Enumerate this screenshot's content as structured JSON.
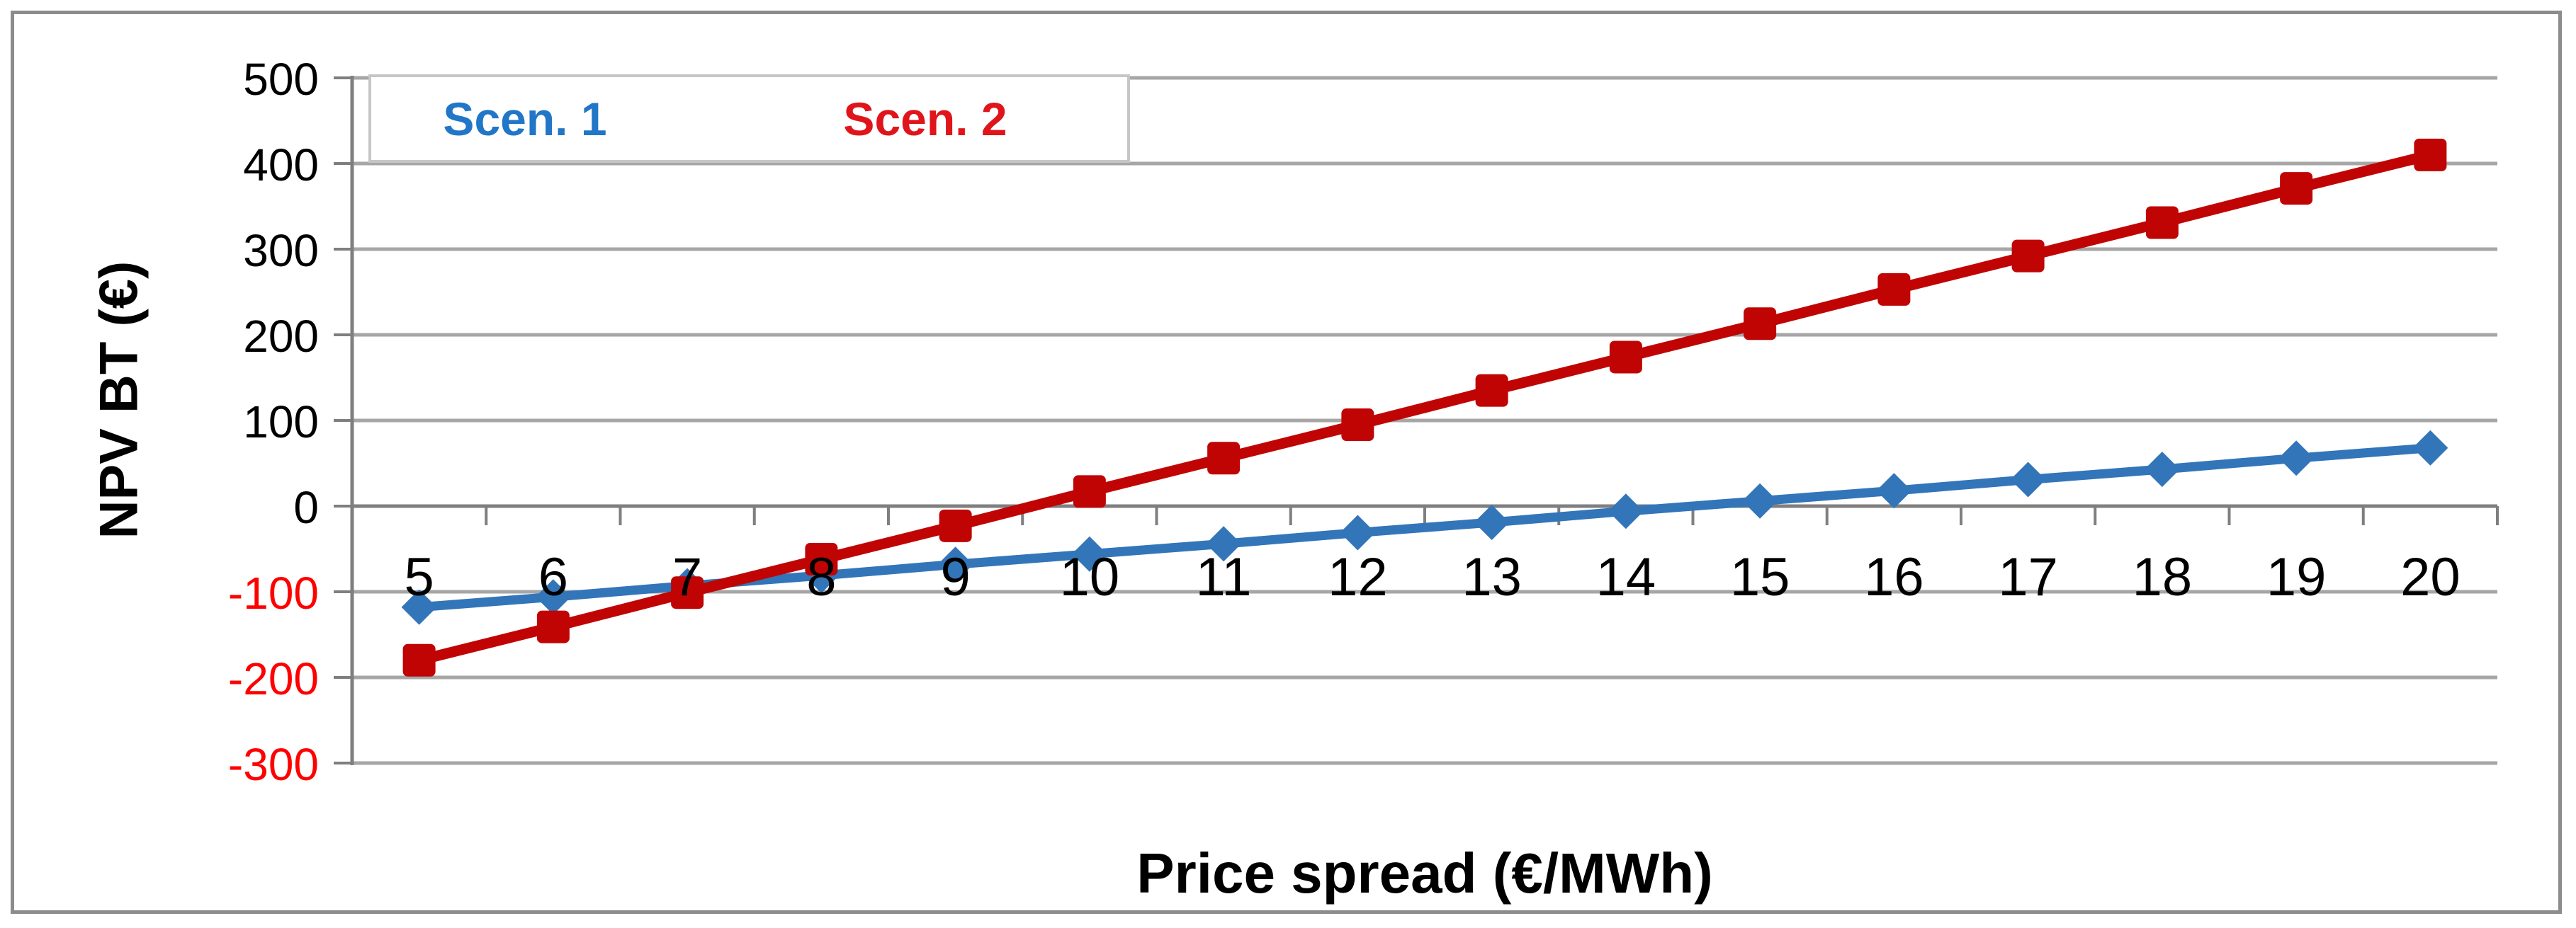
{
  "chart_data": {
    "type": "line",
    "categories": [
      "5",
      "6",
      "7",
      "8",
      "9",
      "10",
      "11",
      "12",
      "13",
      "14",
      "15",
      "16",
      "17",
      "18",
      "19",
      "20"
    ],
    "series": [
      {
        "name": "Scen. 1",
        "marker": "diamond",
        "color": "#3375B9",
        "legend_text_color": "#2176C7",
        "values": [
          -118,
          -106,
          -93,
          -81,
          -68,
          -56,
          -44,
          -31,
          -19,
          -6,
          6,
          18,
          31,
          43,
          56,
          68
        ]
      },
      {
        "name": "Scen. 2",
        "marker": "square",
        "color": "#C00404",
        "legend_text_color": "#E0151B",
        "values": [
          -180,
          -141,
          -101,
          -62,
          -23,
          17,
          56,
          95,
          135,
          174,
          213,
          253,
          292,
          331,
          371,
          410
        ]
      }
    ],
    "xlabel": "Price spread (€/MWh)",
    "ylabel": "NPV BT (€)",
    "ylim": [
      -300,
      500
    ],
    "yticks": [
      500,
      400,
      300,
      200,
      100,
      0,
      -100,
      -200,
      -300
    ],
    "ytick_color": "#000000",
    "ytick_negative_color": "#FF0000",
    "xtick_color": "#000000",
    "gridline_color": "#A6A6A6",
    "axis_color": "#7F7F7F",
    "frame_border_color": "#8C8C8C",
    "legend_border_color": "#C6C6C6",
    "grid": true,
    "legend_position": "top-left"
  }
}
